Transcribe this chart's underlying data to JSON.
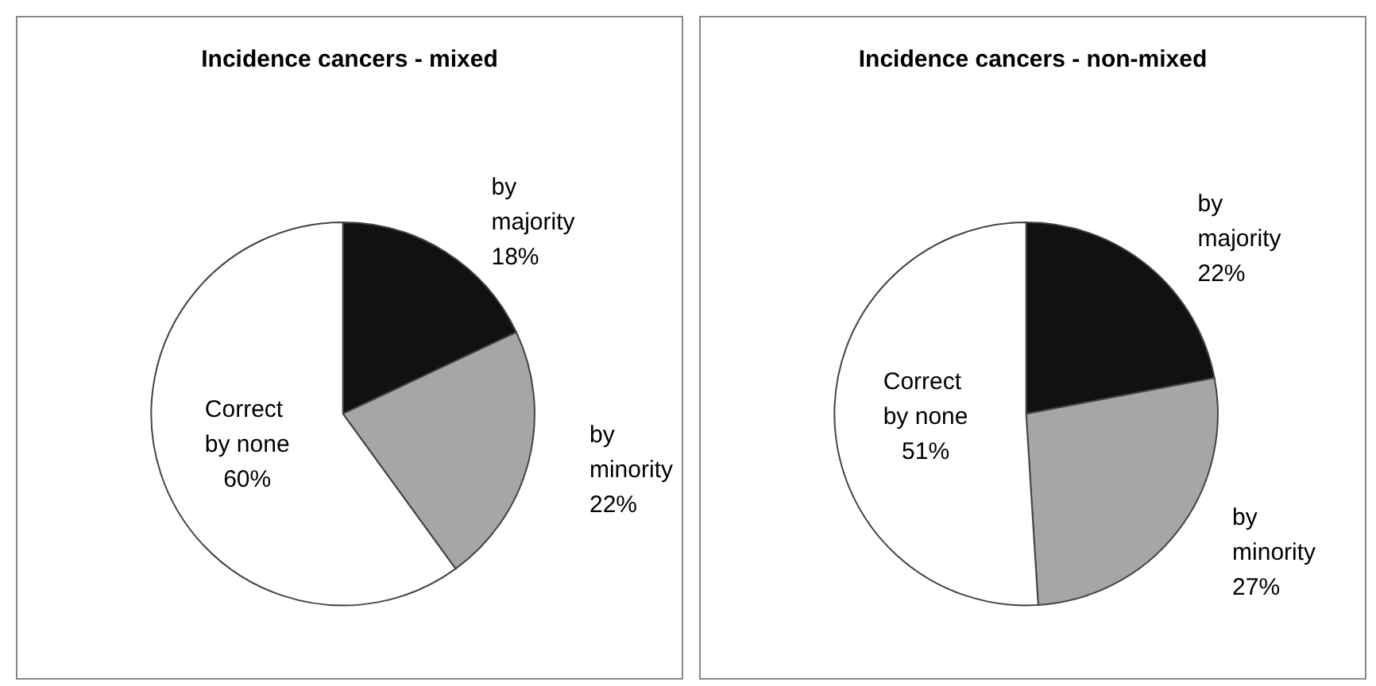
{
  "chart_data": [
    {
      "type": "pie",
      "title": "Incidence cancers - mixed",
      "categories": [
        "by majority",
        "by minority",
        "Correct by none"
      ],
      "values": [
        18,
        22,
        60
      ],
      "value_labels": [
        "18%",
        "22%",
        "60%"
      ],
      "colors": [
        "#111111",
        "#a6a6a6",
        "#ffffff"
      ],
      "legend": false
    },
    {
      "type": "pie",
      "title": "Incidence cancers - non-mixed",
      "categories": [
        "by majority",
        "by minority",
        "Correct by none"
      ],
      "values": [
        22,
        27,
        51
      ],
      "value_labels": [
        "22%",
        "27%",
        "51%"
      ],
      "colors": [
        "#111111",
        "#a6a6a6",
        "#ffffff"
      ],
      "legend": false
    }
  ]
}
